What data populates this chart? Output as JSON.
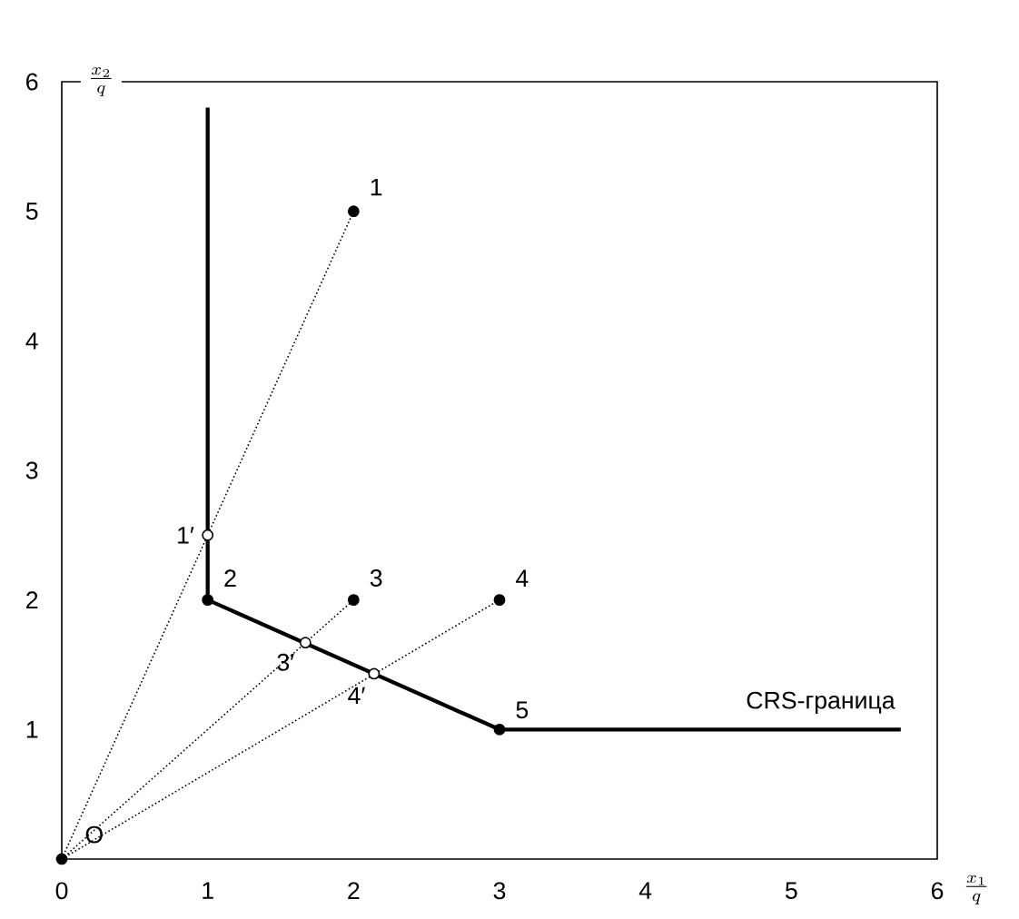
{
  "chart_data": {
    "type": "line",
    "xlabel": "\\frac{x_1}{q}",
    "ylabel": "\\frac{x_2}{q}",
    "xlim": [
      0,
      6
    ],
    "ylim": [
      0,
      6
    ],
    "xticks": [
      0,
      1,
      2,
      3,
      4,
      5,
      6
    ],
    "yticks": [
      1,
      2,
      3,
      4,
      5,
      6
    ],
    "grid": false,
    "series": [
      {
        "color": "#000000",
        "line_style": "solid",
        "x": [
          1,
          1,
          3,
          5.75
        ],
        "values": [
          5.8,
          2,
          1,
          1
        ]
      },
      {
        "color": "#000000",
        "line_style": "dotted",
        "x": [
          0,
          2
        ],
        "values": [
          0,
          5
        ]
      },
      {
        "color": "#000000",
        "line_style": "dotted",
        "x": [
          0,
          2
        ],
        "values": [
          0,
          2
        ]
      },
      {
        "color": "#000000",
        "line_style": "dotted",
        "x": [
          0,
          3
        ],
        "values": [
          0,
          2
        ]
      },
      {
        "type": "scatter",
        "color": "#000000",
        "marker": "circle",
        "x": [
          0,
          2,
          1,
          2,
          3,
          3
        ],
        "values": [
          0,
          5,
          2,
          2,
          2,
          1
        ]
      },
      {
        "type": "scatter",
        "color": "#ffffff",
        "marker": "circle",
        "x": [
          1,
          1.67,
          2.14
        ],
        "values": [
          2.5,
          1.67,
          1.43
        ]
      }
    ],
    "annotations": [
      {
        "text": "O",
        "x": 0,
        "y": 0
      },
      {
        "text": "1",
        "x": 2,
        "y": 5
      },
      {
        "text": "2",
        "x": 1,
        "y": 2
      },
      {
        "text": "3",
        "x": 2,
        "y": 2
      },
      {
        "text": "4",
        "x": 3,
        "y": 2
      },
      {
        "text": "5",
        "x": 3,
        "y": 1
      },
      {
        "text": "1′",
        "x": 1,
        "y": 2.5
      },
      {
        "text": "3′",
        "x": 1.67,
        "y": 1.67
      },
      {
        "text": "4′",
        "x": 2.14,
        "y": 1.43
      },
      {
        "text": "CRS-граница",
        "x": 5.2,
        "y": 1
      }
    ]
  }
}
